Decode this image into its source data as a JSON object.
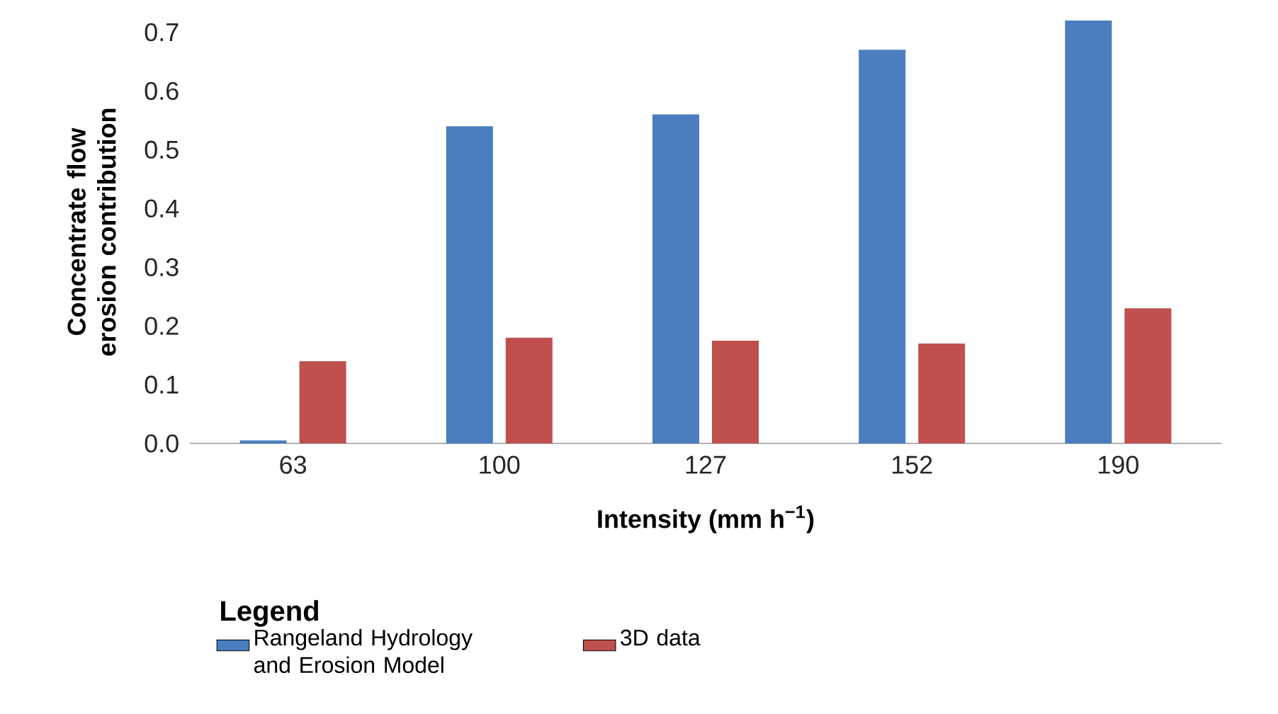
{
  "chart_data": {
    "type": "bar",
    "xlabel": "Intensity (mm h$^{−1}$)",
    "ylabel": "Concentrate flow erosion contribution",
    "legend_title": "Legend",
    "categories": [
      "63",
      "100",
      "127",
      "152",
      "190"
    ],
    "series": [
      {
        "name": "Rangeland Hydrology and Erosion Model",
        "color": "#4a7ebf",
        "values": [
          0.005,
          0.54,
          0.56,
          0.67,
          0.72
        ]
      },
      {
        "name": "3D data",
        "color": "#c0504d",
        "values": [
          0.14,
          0.18,
          0.175,
          0.17,
          0.23
        ]
      }
    ],
    "ylim": [
      0,
      0.72
    ],
    "yticks": [
      {
        "value": 0,
        "label": "0.0"
      },
      0.1,
      0.2,
      0.3,
      0.4,
      0.5,
      0.6,
      0.7
    ],
    "legend": "bottom"
  }
}
